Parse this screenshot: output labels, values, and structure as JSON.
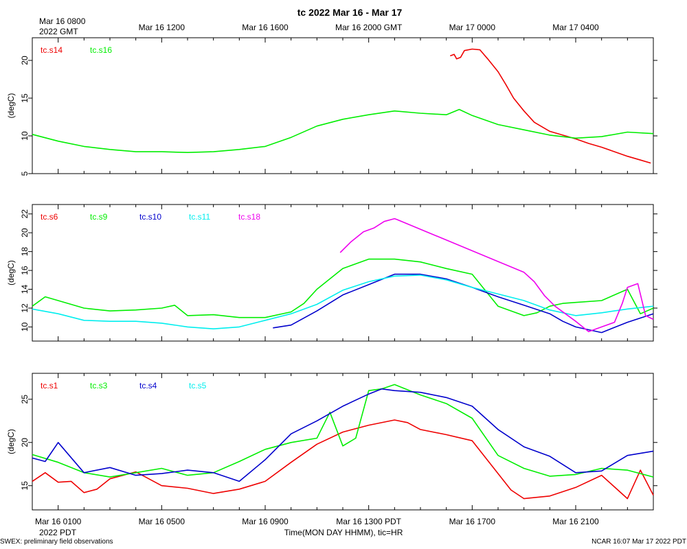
{
  "title": "tc 2022 Mar 16 - Mar 17",
  "x_axis": {
    "gmt_start_label": "Mar 16 0800",
    "gmt_year_label": "2022 GMT",
    "gmt_ticks": [
      "Mar 16 1200",
      "Mar 16 1600",
      "Mar 16 2000 GMT",
      "Mar 17 0000",
      "Mar 17 0400"
    ],
    "pdt_ticks": [
      "Mar 16 0100",
      "Mar 16 0500",
      "Mar 16 0900",
      "Mar 16 1300 PDT",
      "Mar 16 1700",
      "Mar 16 2100"
    ],
    "pdt_year_label": "2022 PDT",
    "label": "Time(MON DAY HHMM), tic=HR",
    "range_hours_pdt": [
      0,
      24
    ]
  },
  "footer": {
    "left": "SWEX: preliminary field observations",
    "right": "NCAR 16:07 Mar 17 2022 PDT"
  },
  "colors": {
    "red": "#ee0000",
    "green": "#00ee00",
    "blue": "#0000cc",
    "cyan": "#00eeee",
    "magenta": "#ee00ee"
  },
  "chart_data": [
    {
      "type": "line",
      "ylabel": "(degC)",
      "ylim": [
        5,
        23
      ],
      "yticks": [
        5,
        10,
        15,
        20
      ],
      "series": [
        {
          "name": "tc.s14",
          "color": "#ee0000",
          "x": [
            16.15,
            16.3,
            16.4,
            16.55,
            16.7,
            17.0,
            17.3,
            17.6,
            18.0,
            18.3,
            18.6,
            19.0,
            19.4,
            20.0,
            20.5,
            21.0,
            21.5,
            22.0,
            22.5,
            23.0,
            23.5,
            23.9
          ],
          "y": [
            20.6,
            20.8,
            20.2,
            20.4,
            21.3,
            21.5,
            21.4,
            20.2,
            18.5,
            16.8,
            15.0,
            13.3,
            11.8,
            10.6,
            10.1,
            9.6,
            9.0,
            8.5,
            7.9,
            7.3,
            6.8,
            6.4
          ]
        },
        {
          "name": "tc.s16",
          "color": "#00ee00",
          "x": [
            0,
            1,
            2,
            3,
            4,
            5,
            6,
            7,
            8,
            9,
            10,
            11,
            12,
            13,
            14,
            15,
            16,
            16.5,
            17,
            18,
            19,
            20,
            21,
            22,
            23,
            24
          ],
          "y": [
            10.2,
            9.3,
            8.6,
            8.2,
            7.9,
            7.9,
            7.8,
            7.9,
            8.2,
            8.6,
            9.8,
            11.3,
            12.2,
            12.8,
            13.3,
            13.0,
            12.8,
            13.5,
            12.7,
            11.5,
            10.8,
            10.1,
            9.7,
            9.9,
            10.5,
            10.3
          ]
        }
      ]
    },
    {
      "type": "line",
      "ylabel": "(degC)",
      "ylim": [
        8.5,
        23
      ],
      "yticks": [
        10,
        12,
        14,
        16,
        18,
        20,
        22
      ],
      "series": [
        {
          "name": "tc.s6",
          "color": "#ee0000",
          "x": [],
          "y": []
        },
        {
          "name": "tc.s9",
          "color": "#00ee00",
          "x": [
            0,
            0.5,
            1,
            2,
            3,
            4,
            5,
            5.5,
            6,
            7,
            8,
            9,
            10,
            10.5,
            11,
            12,
            13,
            14,
            15,
            16,
            17,
            18,
            19,
            19.5,
            20,
            20.5,
            21,
            22,
            23,
            23.5,
            24
          ],
          "y": [
            12.2,
            13.2,
            12.8,
            12.0,
            11.7,
            11.8,
            12.0,
            12.3,
            11.2,
            11.3,
            11.0,
            11.0,
            11.6,
            12.5,
            14.0,
            16.2,
            17.2,
            17.2,
            16.9,
            16.2,
            15.6,
            12.2,
            11.2,
            11.5,
            12.2,
            12.5,
            12.6,
            12.8,
            14.0,
            11.4,
            12.0
          ]
        },
        {
          "name": "tc.s10",
          "color": "#0000cc",
          "x": [
            9.3,
            10,
            11,
            12,
            13,
            14,
            15,
            16,
            17,
            18,
            19,
            20,
            20.5,
            21,
            22,
            23,
            24
          ],
          "y": [
            9.9,
            10.2,
            11.7,
            13.4,
            14.5,
            15.6,
            15.6,
            15.1,
            14.2,
            13.2,
            12.3,
            11.4,
            10.6,
            10.0,
            9.4,
            10.5,
            11.4
          ]
        },
        {
          "name": "tc.s11",
          "color": "#00eeee",
          "x": [
            0,
            1,
            2,
            3,
            4,
            5,
            6,
            7,
            8,
            9,
            10,
            11,
            12,
            13,
            14,
            15,
            16,
            17,
            18,
            19,
            20,
            21,
            22,
            23,
            24
          ],
          "y": [
            11.9,
            11.4,
            10.7,
            10.6,
            10.6,
            10.4,
            10.0,
            9.8,
            10.0,
            10.7,
            11.4,
            12.4,
            13.9,
            14.8,
            15.4,
            15.5,
            15.0,
            14.2,
            13.5,
            12.8,
            11.8,
            11.2,
            11.5,
            11.9,
            12.2
          ]
        },
        {
          "name": "tc.s18",
          "color": "#ee00ee",
          "x": [
            11.9,
            12.3,
            12.8,
            13.2,
            13.6,
            14.0,
            14.1,
            19.0,
            19.4,
            19.8,
            20.2,
            21.0,
            21.5,
            22.0,
            22.5,
            22.8,
            23.0,
            23.4,
            23.7,
            24.0
          ],
          "y": [
            17.9,
            19.0,
            20.1,
            20.5,
            21.2,
            21.5,
            21.4,
            15.8,
            14.8,
            13.3,
            12.2,
            10.6,
            9.5,
            10.0,
            10.5,
            12.5,
            14.2,
            14.6,
            11.2,
            10.8
          ]
        }
      ]
    },
    {
      "type": "line",
      "ylabel": "(degC)",
      "ylim": [
        12.2,
        28
      ],
      "yticks": [
        15,
        20,
        25
      ],
      "series": [
        {
          "name": "tc.s1",
          "color": "#ee0000",
          "x": [
            0,
            0.5,
            1,
            1.5,
            2,
            2.5,
            3,
            4,
            5,
            6,
            7,
            8,
            9,
            10,
            11,
            12,
            13,
            14,
            14.5,
            15,
            16,
            17,
            18,
            18.5,
            19,
            20,
            21,
            22,
            23,
            23.5,
            24
          ],
          "y": [
            15.5,
            16.5,
            15.4,
            15.5,
            14.2,
            14.6,
            15.8,
            16.6,
            15.0,
            14.7,
            14.1,
            14.6,
            15.5,
            17.7,
            19.8,
            21.2,
            22.0,
            22.6,
            22.3,
            21.5,
            20.9,
            20.2,
            16.4,
            14.5,
            13.5,
            13.8,
            14.8,
            16.2,
            13.5,
            16.8,
            13.9
          ]
        },
        {
          "name": "tc.s3",
          "color": "#00ee00",
          "x": [
            0,
            1,
            2,
            3,
            4,
            5,
            6,
            7,
            8,
            9,
            10,
            11,
            11.5,
            12,
            12.5,
            13,
            13.5,
            14,
            15,
            16,
            17,
            18,
            19,
            20,
            21,
            22,
            23,
            24
          ],
          "y": [
            18.6,
            17.7,
            16.5,
            16.0,
            16.5,
            17.0,
            16.2,
            16.5,
            17.8,
            19.2,
            20.0,
            20.5,
            23.5,
            19.6,
            20.5,
            26.0,
            26.2,
            26.7,
            25.5,
            24.5,
            22.8,
            18.5,
            17.0,
            16.1,
            16.3,
            17.0,
            16.8,
            16.0
          ]
        },
        {
          "name": "tc.s4",
          "color": "#0000cc",
          "x": [
            0,
            0.5,
            1,
            2,
            3,
            4,
            5,
            6,
            7,
            8,
            9,
            10,
            11,
            12,
            13,
            13.5,
            14,
            15,
            16,
            17,
            18,
            19,
            20,
            21,
            22,
            23,
            24
          ],
          "y": [
            18.2,
            17.8,
            20.0,
            16.5,
            17.1,
            16.2,
            16.4,
            16.8,
            16.5,
            15.5,
            18.0,
            21.0,
            22.5,
            24.2,
            25.6,
            26.2,
            26.0,
            25.8,
            25.2,
            24.2,
            21.5,
            19.5,
            18.4,
            16.5,
            16.7,
            18.5,
            19.0
          ]
        },
        {
          "name": "tc.s5",
          "color": "#00eeee",
          "x": [],
          "y": []
        }
      ]
    }
  ]
}
